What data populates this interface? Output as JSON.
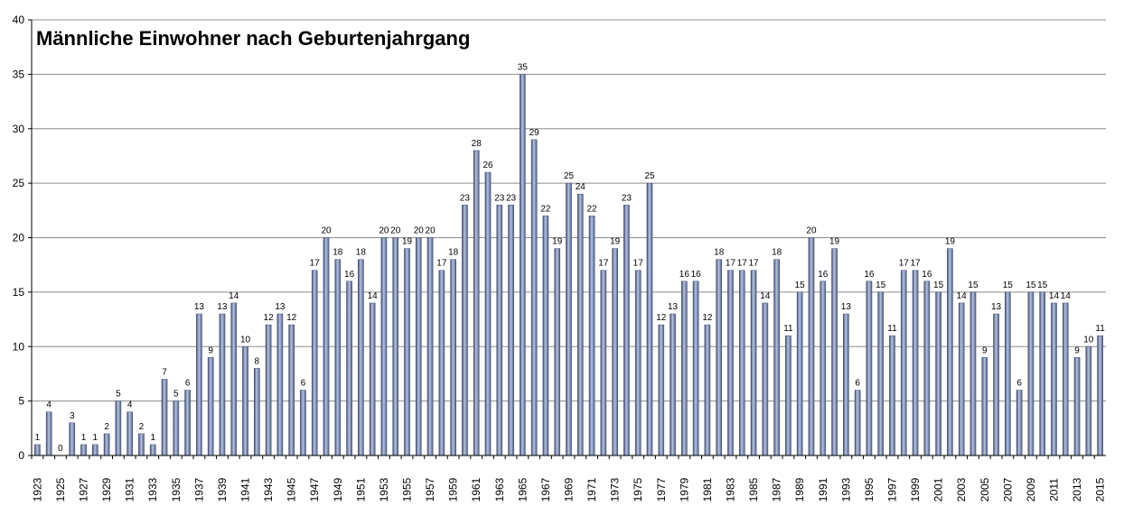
{
  "chart_data": {
    "type": "bar",
    "title": "Männliche Einwohner nach Geburtenjahrgang",
    "xlabel": "",
    "ylabel": "",
    "ylim": [
      0,
      40
    ],
    "yticks": [
      0,
      5,
      10,
      15,
      20,
      25,
      30,
      35,
      40
    ],
    "grid": true,
    "legend": "none",
    "colors": {
      "bar": "#6e7fa8",
      "bar_dark": "#3d4b73",
      "grid": "#8c8c8c",
      "axis": "#000000"
    },
    "categories": [
      "1923",
      "1924",
      "1925",
      "1926",
      "1927",
      "1928",
      "1929",
      "1930",
      "1931",
      "1932",
      "1933",
      "1934",
      "1935",
      "1936",
      "1937",
      "1938",
      "1939",
      "1940",
      "1941",
      "1942",
      "1943",
      "1944",
      "1945",
      "1946",
      "1947",
      "1948",
      "1949",
      "1950",
      "1951",
      "1952",
      "1953",
      "1954",
      "1955",
      "1956",
      "1957",
      "1958",
      "1959",
      "1960",
      "1961",
      "1962",
      "1963",
      "1964",
      "1965",
      "1966",
      "1967",
      "1968",
      "1969",
      "1970",
      "1971",
      "1972",
      "1973",
      "1974",
      "1975",
      "1976",
      "1977",
      "1978",
      "1979",
      "1980",
      "1981",
      "1982",
      "1983",
      "1984",
      "1985",
      "1986",
      "1987",
      "1988",
      "1989",
      "1990",
      "1991",
      "1992",
      "1993",
      "1994",
      "1995",
      "1996",
      "1997",
      "1998",
      "1999",
      "2000",
      "2001",
      "2002",
      "2003",
      "2004",
      "2005",
      "2006",
      "2007",
      "2008",
      "2009",
      "2010",
      "2011",
      "2012",
      "2013",
      "2014",
      "2015"
    ],
    "xtick_labels": [
      "1923",
      "1925",
      "1927",
      "1929",
      "1931",
      "1933",
      "1935",
      "1937",
      "1939",
      "1941",
      "1943",
      "1945",
      "1947",
      "1949",
      "1951",
      "1953",
      "1955",
      "1957",
      "1959",
      "1961",
      "1963",
      "1965",
      "1967",
      "1969",
      "1971",
      "1973",
      "1975",
      "1977",
      "1979",
      "1981",
      "1983",
      "1985",
      "1987",
      "1989",
      "1991",
      "1993",
      "1995",
      "1997",
      "1999",
      "2001",
      "2003",
      "2005",
      "2007",
      "2009",
      "2011",
      "2013",
      "2015"
    ],
    "values": [
      1,
      4,
      0,
      3,
      1,
      1,
      2,
      5,
      4,
      2,
      1,
      7,
      5,
      6,
      13,
      9,
      13,
      14,
      10,
      8,
      12,
      13,
      12,
      6,
      17,
      20,
      18,
      16,
      18,
      14,
      20,
      20,
      19,
      20,
      20,
      17,
      18,
      23,
      28,
      26,
      23,
      23,
      35,
      29,
      22,
      19,
      25,
      24,
      22,
      17,
      19,
      23,
      17,
      25,
      12,
      13,
      16,
      16,
      12,
      18,
      17,
      17,
      17,
      14,
      18,
      11,
      15,
      20,
      16,
      19,
      13,
      6,
      16,
      15,
      11,
      17,
      17,
      16,
      15,
      19,
      14,
      15,
      9,
      13,
      15,
      6,
      15,
      15,
      14,
      14,
      9,
      10,
      11
    ]
  }
}
